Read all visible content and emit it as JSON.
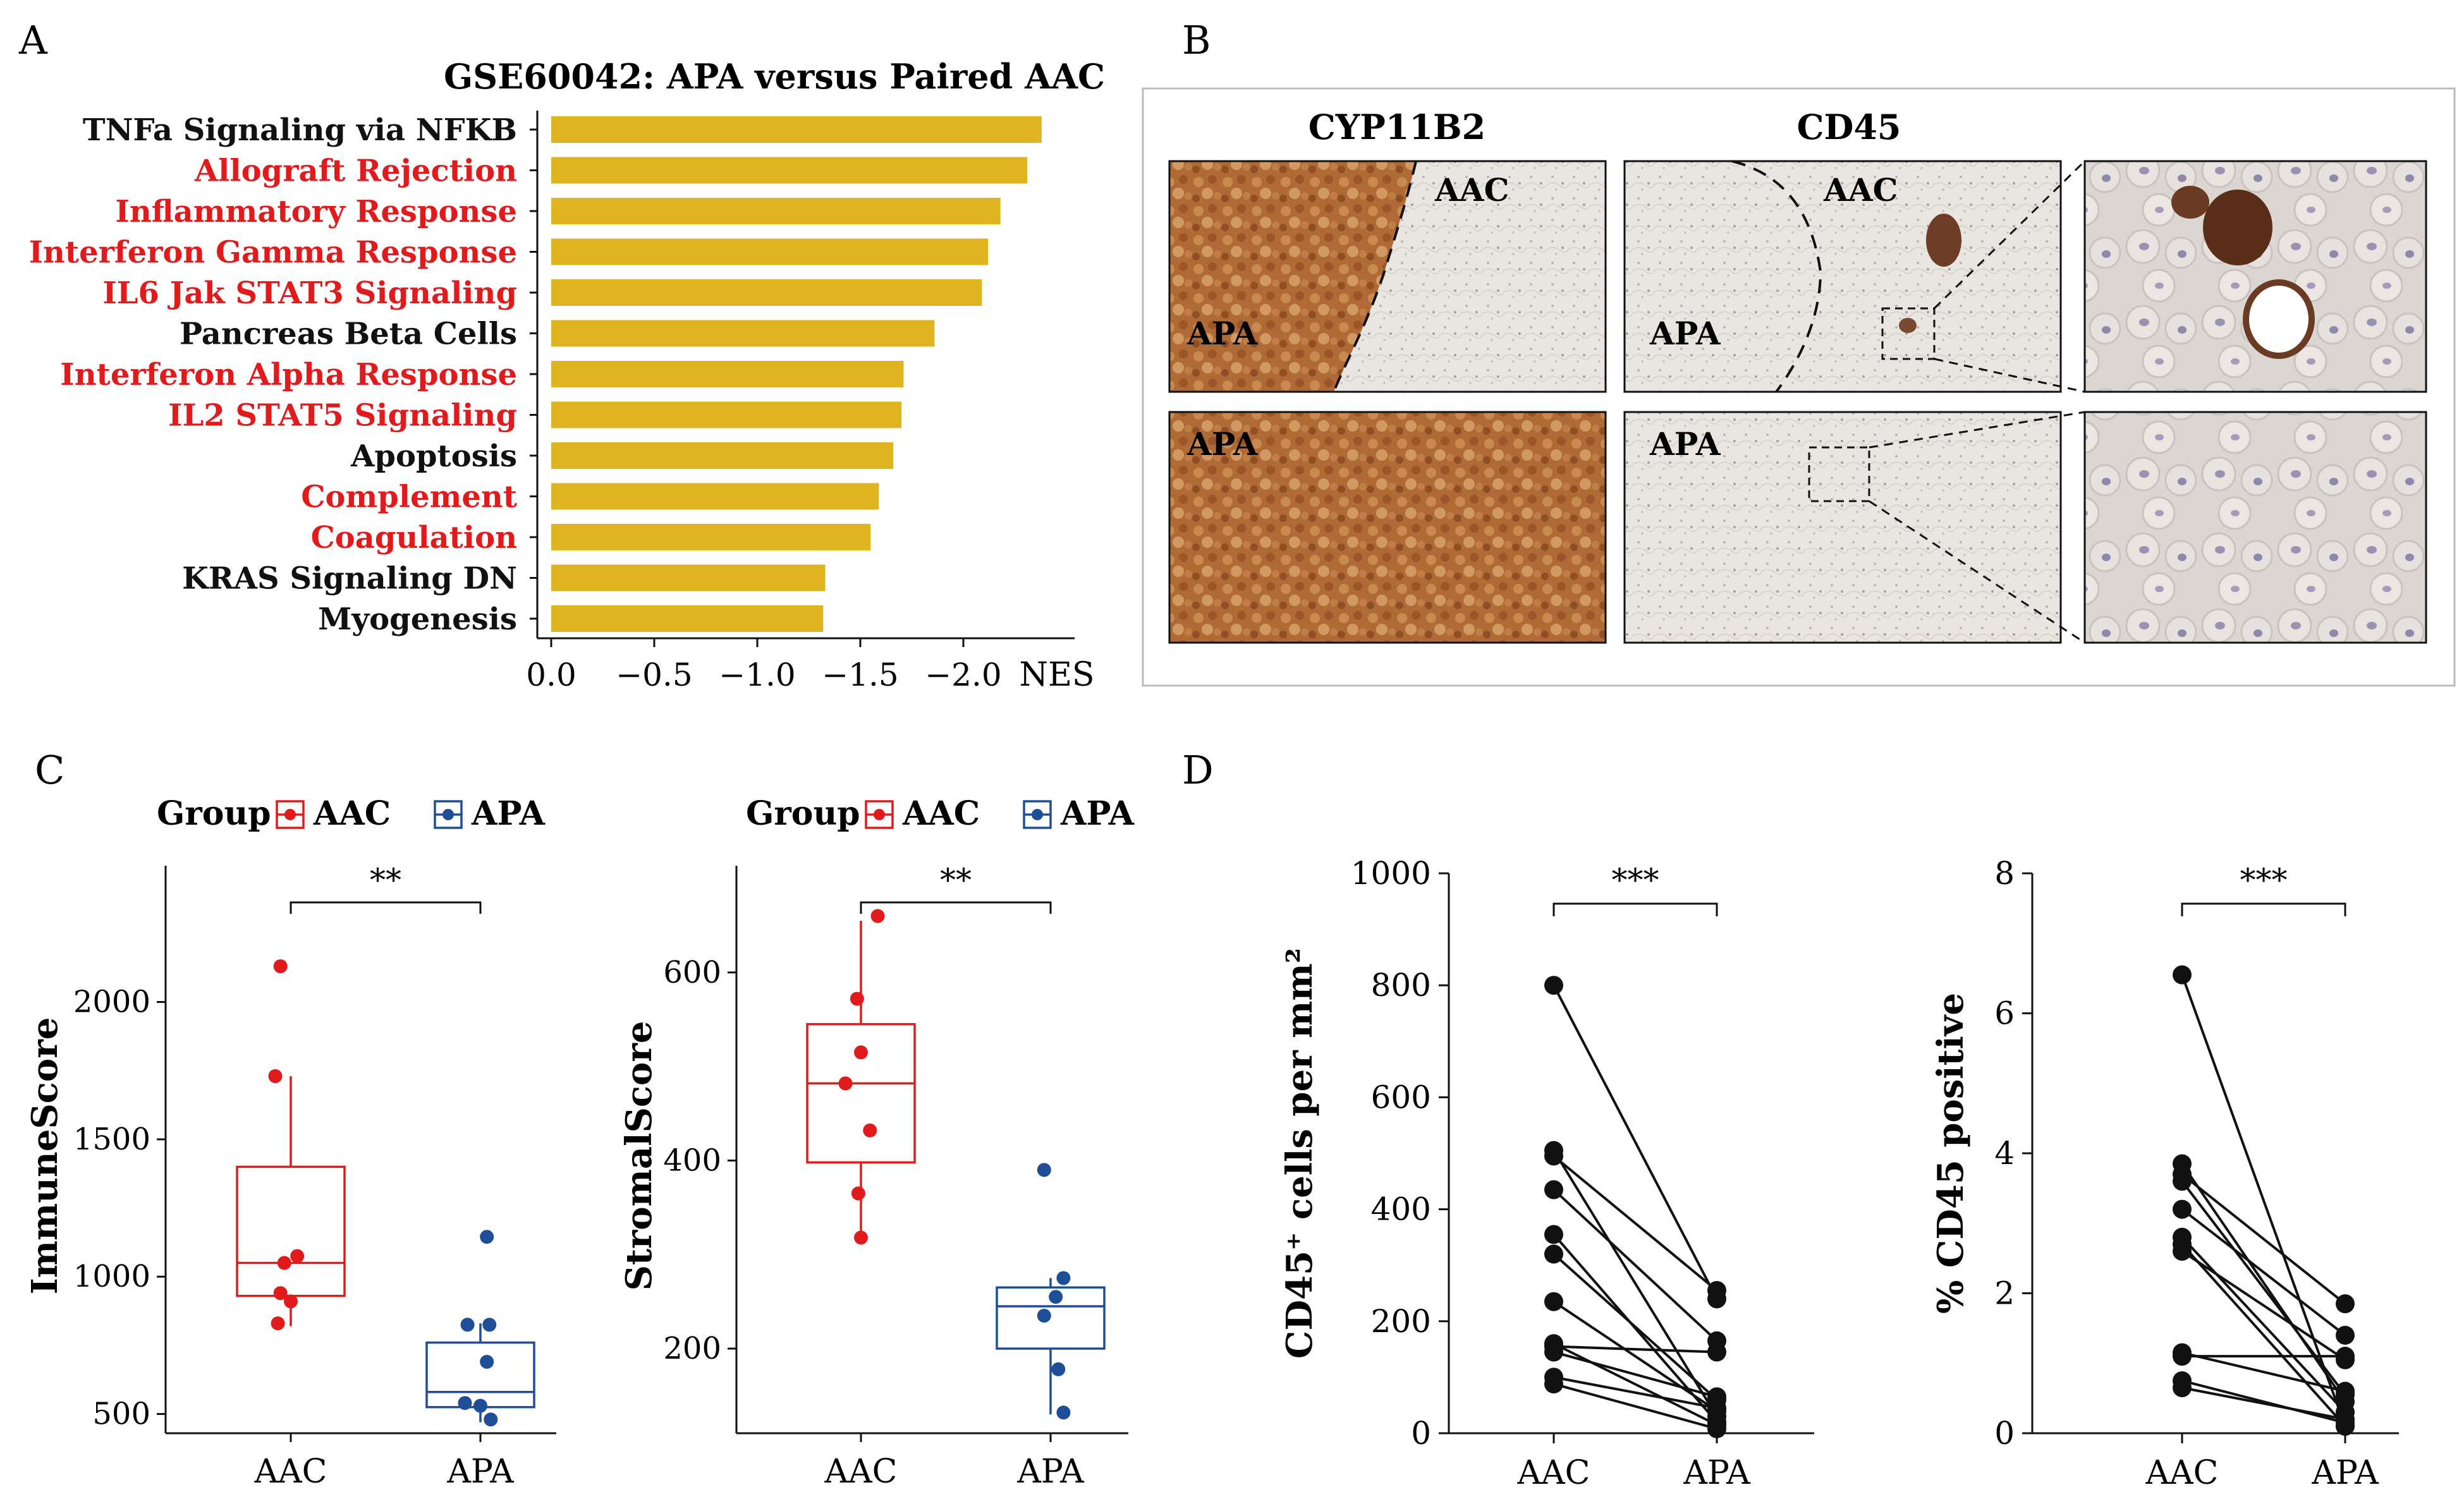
{
  "panels": {
    "a": "A",
    "b": "B",
    "c": "C",
    "d": "D"
  },
  "colors": {
    "bar": "#e0b421",
    "aac": "#e31a1c",
    "apa": "#1f4e99",
    "red_label": "#e31a1c",
    "black_label": "#111111",
    "axis": "#111111"
  },
  "chart_data": [
    {
      "id": "A",
      "type": "bar",
      "orientation": "horizontal",
      "title": "GSE60042: APA versus Paired AAC",
      "xlabel": "NES",
      "xlim": [
        0,
        -2.5
      ],
      "xticks": [
        0.0,
        -0.5,
        -1.0,
        -1.5,
        -2.0
      ],
      "xtick_labels": [
        "0.0",
        "−0.5",
        "−1.0",
        "−1.5",
        "−2.0"
      ],
      "categories": [
        "TNFa Signaling via NFKB",
        "Allograft Rejection",
        "Inflammatory Response",
        "Interferon Gamma Response",
        "IL6 Jak STAT3 Signaling",
        "Pancreas Beta Cells",
        "Interferon Alpha Response",
        "IL2 STAT5 Signaling",
        "Apoptosis",
        "Complement",
        "Coagulation",
        "KRAS Signaling DN",
        "Myogenesis"
      ],
      "values": [
        -2.38,
        -2.31,
        -2.18,
        -2.12,
        -2.09,
        -1.86,
        -1.71,
        -1.7,
        -1.66,
        -1.59,
        -1.55,
        -1.33,
        -1.32
      ],
      "highlight": [
        false,
        true,
        true,
        true,
        true,
        false,
        true,
        true,
        false,
        true,
        true,
        false,
        false
      ]
    },
    {
      "id": "C1",
      "type": "box",
      "legend": {
        "title": "Group",
        "entries": [
          "AAC",
          "APA"
        ]
      },
      "categories": [
        "AAC",
        "APA"
      ],
      "ylabel": "ImmuneScore",
      "ylim": [
        430,
        2450
      ],
      "yticks": [
        500,
        1000,
        1500,
        2000
      ],
      "significance": "**",
      "groups": [
        {
          "name": "AAC",
          "q1": 930,
          "median": 1050,
          "q3": 1400,
          "whisker_low": 820,
          "whisker_high": 1730,
          "points": [
            [
              -0.08,
              2130
            ],
            [
              -0.12,
              1730
            ],
            [
              0.05,
              1075
            ],
            [
              -0.05,
              1050
            ],
            [
              -0.08,
              940
            ],
            [
              0.0,
              910
            ],
            [
              -0.1,
              830
            ]
          ]
        },
        {
          "name": "APA",
          "q1": 525,
          "median": 580,
          "q3": 760,
          "whisker_low": 470,
          "whisker_high": 830,
          "points": [
            [
              0.05,
              1145
            ],
            [
              -0.1,
              825
            ],
            [
              0.07,
              825
            ],
            [
              0.05,
              690
            ],
            [
              -0.12,
              540
            ],
            [
              0.0,
              530
            ],
            [
              0.08,
              480
            ]
          ]
        }
      ]
    },
    {
      "id": "C2",
      "type": "box",
      "legend": {
        "title": "Group",
        "entries": [
          "AAC",
          "APA"
        ]
      },
      "categories": [
        "AAC",
        "APA"
      ],
      "ylabel": "StromalScore",
      "ylim": [
        110,
        700
      ],
      "yticks": [
        200,
        400,
        600
      ],
      "significance": "**",
      "groups": [
        {
          "name": "AAC",
          "q1": 398,
          "median": 482,
          "q3": 545,
          "whisker_low": 318,
          "whisker_high": 655,
          "points": [
            [
              0.13,
              660
            ],
            [
              -0.03,
              572
            ],
            [
              0.0,
              515
            ],
            [
              -0.12,
              482
            ],
            [
              0.07,
              432
            ],
            [
              -0.02,
              365
            ],
            [
              0.0,
              318
            ]
          ]
        },
        {
          "name": "APA",
          "q1": 200,
          "median": 245,
          "q3": 265,
          "whisker_low": 130,
          "whisker_high": 275,
          "points": [
            [
              -0.05,
              390
            ],
            [
              0.1,
              275
            ],
            [
              0.04,
              255
            ],
            [
              -0.05,
              235
            ],
            [
              0.06,
              178
            ],
            [
              0.1,
              132
            ]
          ]
        }
      ]
    },
    {
      "id": "D1",
      "type": "paired-line",
      "categories": [
        "AAC",
        "APA"
      ],
      "ylabel": "CD45⁺ cells per mm²",
      "ylim": [
        0,
        1000
      ],
      "yticks": [
        0,
        200,
        400,
        600,
        800,
        1000
      ],
      "significance": "***",
      "pairs": [
        [
          800,
          240
        ],
        [
          505,
          30
        ],
        [
          495,
          255
        ],
        [
          435,
          165
        ],
        [
          355,
          20
        ],
        [
          320,
          60
        ],
        [
          235,
          40
        ],
        [
          160,
          15
        ],
        [
          155,
          145
        ],
        [
          145,
          65
        ],
        [
          100,
          45
        ],
        [
          88,
          8
        ]
      ]
    },
    {
      "id": "D2",
      "type": "paired-line",
      "categories": [
        "AAC",
        "APA"
      ],
      "ylabel": "% CD45 positive",
      "ylim": [
        0,
        8
      ],
      "yticks": [
        0,
        2,
        4,
        6,
        8
      ],
      "significance": "***",
      "pairs": [
        [
          6.55,
          0.1
        ],
        [
          3.85,
          0.45
        ],
        [
          3.7,
          1.85
        ],
        [
          3.6,
          0.55
        ],
        [
          3.2,
          1.4
        ],
        [
          2.8,
          0.3
        ],
        [
          2.7,
          0.1
        ],
        [
          2.6,
          1.05
        ],
        [
          1.15,
          0.6
        ],
        [
          1.1,
          1.1
        ],
        [
          0.75,
          0.15
        ],
        [
          0.65,
          0.2
        ]
      ]
    }
  ],
  "micrograph": {
    "headers": {
      "cyp11b2": "CYP11B2",
      "cd45": "CD45"
    },
    "labels": {
      "aac1": "AAC",
      "apa1": "APA",
      "aac2": "AAC",
      "apa2": "APA",
      "apa3": "APA",
      "apa4": "APA"
    }
  }
}
